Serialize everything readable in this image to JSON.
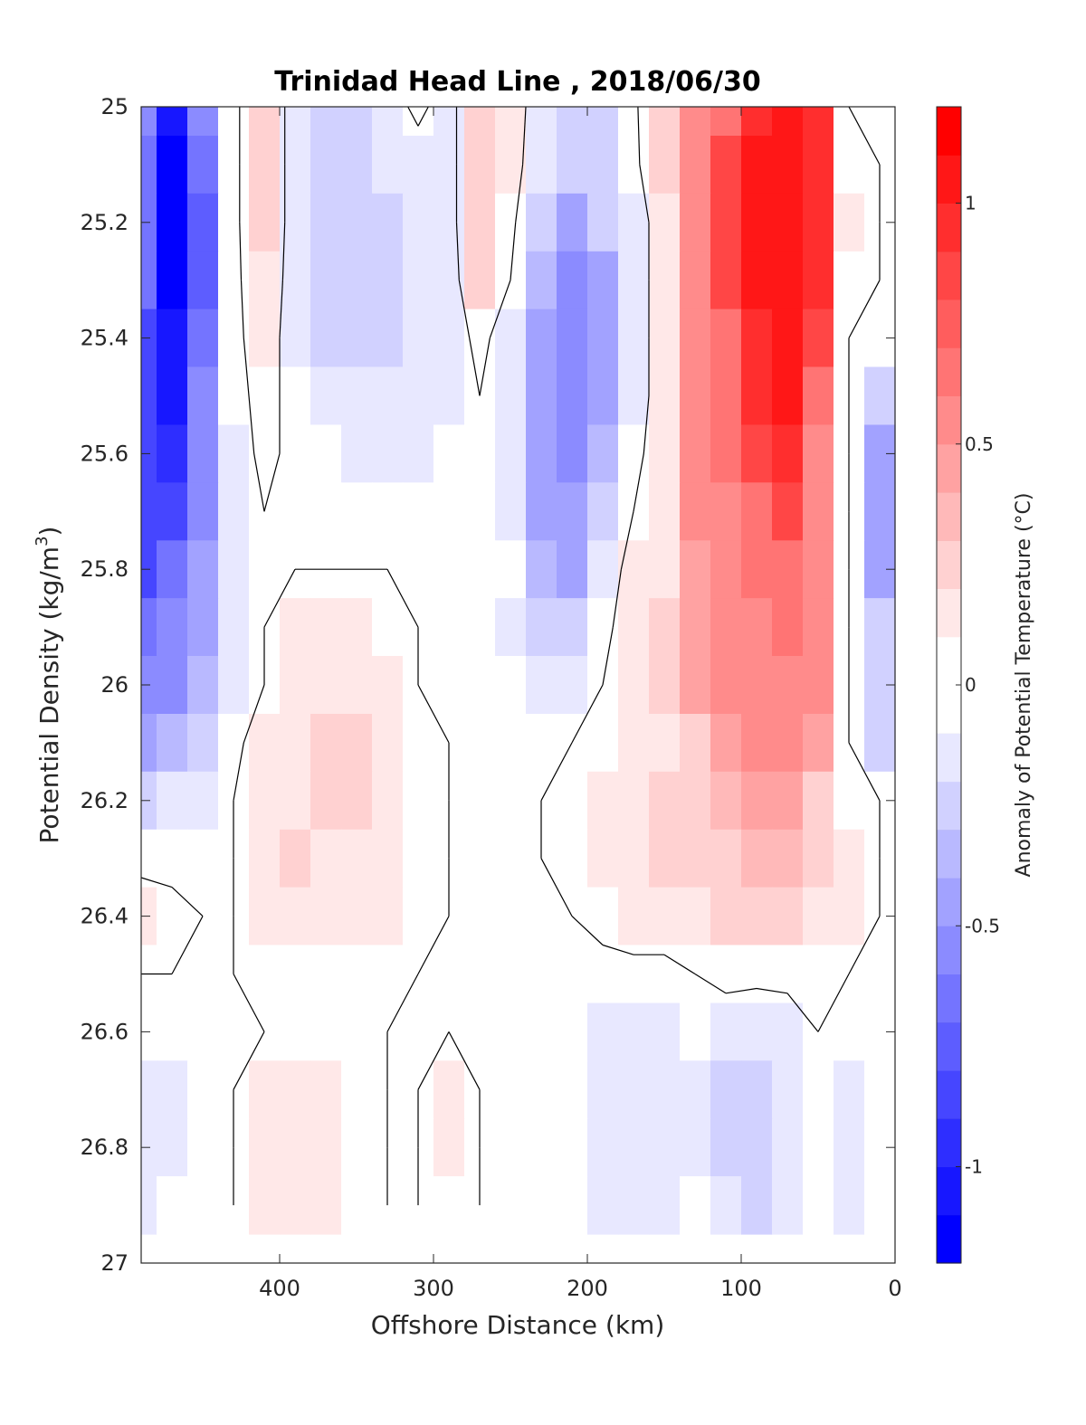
{
  "chart_data": {
    "type": "contour",
    "title": "Trinidad Head Line , 2018/06/30",
    "xlabel": "Offshore Distance (km)",
    "ylabel": "Potential Density (kg/m",
    "ylabel_superscript": "3",
    "ylabel_suffix": ")",
    "xlim": [
      490,
      0
    ],
    "ylim": [
      25,
      27
    ],
    "x_reversed": true,
    "y_reversed": true,
    "xticks": [
      400,
      300,
      200,
      100,
      0
    ],
    "xtick_labels": [
      "400",
      "300",
      "200",
      "100",
      "0"
    ],
    "yticks": [
      25,
      25.2,
      25.4,
      25.6,
      25.8,
      26,
      26.2,
      26.4,
      26.6,
      26.8,
      27
    ],
    "ytick_labels": [
      "25",
      "25.2",
      "25.4",
      "25.6",
      "25.8",
      "26",
      "26.2",
      "26.4",
      "26.6",
      "26.8",
      "27"
    ],
    "colorbar": {
      "label": "Anomaly of Potential Temperature (°C)",
      "range": [
        -1.2,
        1.2
      ],
      "level_step": 0.1,
      "ticks": [
        1,
        0.5,
        0,
        -0.5,
        -1
      ],
      "tick_labels": [
        "1",
        "0.5",
        "0",
        "-0.5",
        "-1"
      ],
      "colormap": "blue-white-red"
    },
    "zero_contour": "black",
    "anomaly_field": {
      "x": [
        490,
        470,
        450,
        430,
        410,
        390,
        370,
        350,
        330,
        310,
        290,
        270,
        250,
        230,
        210,
        190,
        170,
        150,
        130,
        110,
        90,
        70,
        50,
        30,
        10
      ],
      "y": [
        25.0,
        25.1,
        25.2,
        25.3,
        25.4,
        25.5,
        25.6,
        25.7,
        25.8,
        25.9,
        26.0,
        26.1,
        26.2,
        26.3,
        26.4,
        26.5,
        26.6,
        26.7,
        26.8,
        26.9
      ],
      "z": [
        [
          -0.6,
          -1.0,
          -0.6,
          -0.05,
          0.2,
          -0.1,
          -0.2,
          -0.2,
          -0.1,
          0.05,
          -0.1,
          0.3,
          0.1,
          -0.1,
          -0.2,
          -0.2,
          -0.05,
          0.3,
          0.5,
          0.7,
          0.9,
          1.0,
          0.9,
          0.0,
          0.0
        ],
        [
          -0.7,
          -1.1,
          -0.7,
          -0.05,
          0.2,
          -0.1,
          -0.25,
          -0.25,
          -0.15,
          -0.1,
          -0.1,
          0.3,
          0.1,
          -0.15,
          -0.3,
          -0.2,
          -0.05,
          0.2,
          0.5,
          0.8,
          1.0,
          1.0,
          0.9,
          0.05,
          0.0
        ],
        [
          -0.7,
          -1.1,
          -0.75,
          -0.05,
          0.2,
          -0.1,
          -0.3,
          -0.3,
          -0.2,
          -0.15,
          -0.1,
          0.3,
          0.05,
          -0.25,
          -0.4,
          -0.3,
          -0.1,
          0.1,
          0.5,
          0.8,
          1.0,
          1.0,
          0.9,
          0.1,
          0.0
        ],
        [
          -0.7,
          -1.1,
          -0.75,
          -0.05,
          0.15,
          -0.1,
          -0.3,
          -0.3,
          -0.2,
          -0.15,
          -0.1,
          0.2,
          0.0,
          -0.35,
          -0.5,
          -0.4,
          -0.1,
          0.1,
          0.5,
          0.8,
          1.0,
          1.0,
          0.9,
          0.05,
          0.0
        ],
        [
          -0.8,
          -1.0,
          -0.7,
          -0.05,
          0.1,
          -0.1,
          -0.25,
          -0.2,
          -0.2,
          -0.15,
          -0.1,
          0.05,
          -0.1,
          -0.4,
          -0.6,
          -0.4,
          -0.1,
          0.1,
          0.5,
          0.7,
          0.9,
          1.0,
          0.8,
          0.0,
          -0.05
        ],
        [
          -0.8,
          -1.0,
          -0.6,
          -0.05,
          0.05,
          -0.05,
          -0.15,
          -0.15,
          -0.15,
          -0.1,
          -0.1,
          0.0,
          -0.15,
          -0.45,
          -0.55,
          -0.4,
          -0.1,
          0.1,
          0.5,
          0.7,
          0.9,
          1.0,
          0.7,
          0.0,
          -0.3
        ],
        [
          -0.8,
          -0.9,
          -0.6,
          -0.1,
          0.05,
          -0.05,
          -0.05,
          -0.1,
          -0.1,
          -0.1,
          -0.05,
          0.0,
          -0.15,
          -0.45,
          -0.5,
          -0.35,
          -0.05,
          0.1,
          0.5,
          0.7,
          0.8,
          0.9,
          0.6,
          0.0,
          -0.4
        ],
        [
          -0.8,
          -0.8,
          -0.5,
          -0.1,
          0.0,
          0.0,
          0.0,
          0.0,
          0.0,
          -0.05,
          0.0,
          0.0,
          -0.1,
          -0.4,
          -0.45,
          -0.25,
          0.0,
          0.1,
          0.5,
          0.6,
          0.7,
          0.8,
          0.6,
          0.0,
          -0.4
        ],
        [
          -0.8,
          -0.7,
          -0.45,
          -0.1,
          0.0,
          0.0,
          0.0,
          0.0,
          0.0,
          0.0,
          0.0,
          0.0,
          -0.05,
          -0.35,
          -0.45,
          -0.15,
          0.1,
          0.1,
          0.4,
          0.6,
          0.7,
          0.7,
          0.6,
          0.0,
          -0.4
        ],
        [
          -0.7,
          -0.6,
          -0.4,
          -0.1,
          0.0,
          0.1,
          0.1,
          0.1,
          0.05,
          0.0,
          0.0,
          0.0,
          -0.1,
          -0.25,
          -0.3,
          -0.05,
          0.1,
          0.2,
          0.4,
          0.5,
          0.6,
          0.7,
          0.6,
          0.0,
          -0.3
        ],
        [
          -0.55,
          -0.5,
          -0.35,
          -0.1,
          0.0,
          0.1,
          0.15,
          0.15,
          0.1,
          0.0,
          0.0,
          0.0,
          -0.05,
          -0.15,
          -0.1,
          0.0,
          0.1,
          0.2,
          0.4,
          0.5,
          0.55,
          0.6,
          0.5,
          0.0,
          -0.25
        ],
        [
          -0.4,
          -0.35,
          -0.25,
          -0.05,
          0.1,
          0.15,
          0.2,
          0.2,
          0.15,
          0.05,
          0.0,
          0.0,
          0.0,
          -0.05,
          0.0,
          0.05,
          0.15,
          0.15,
          0.3,
          0.4,
          0.5,
          0.5,
          0.4,
          0.0,
          -0.2
        ],
        [
          -0.2,
          -0.15,
          -0.1,
          0.0,
          0.1,
          0.15,
          0.2,
          0.2,
          0.15,
          0.05,
          0.0,
          0.0,
          0.0,
          0.0,
          0.05,
          0.1,
          0.15,
          0.2,
          0.3,
          0.35,
          0.4,
          0.4,
          0.3,
          0.05,
          0.0
        ],
        [
          -0.05,
          -0.05,
          0.0,
          0.0,
          0.1,
          0.2,
          0.15,
          0.15,
          0.15,
          0.05,
          0.0,
          0.0,
          0.0,
          0.0,
          0.05,
          0.1,
          0.15,
          0.2,
          0.25,
          0.3,
          0.35,
          0.35,
          0.3,
          0.1,
          0.0
        ],
        [
          0.1,
          0.05,
          0.0,
          0.0,
          0.1,
          0.15,
          0.1,
          0.1,
          0.1,
          0.05,
          0.0,
          0.0,
          0.0,
          0.0,
          0.0,
          0.05,
          0.1,
          0.1,
          0.15,
          0.2,
          0.25,
          0.2,
          0.15,
          0.1,
          0.0
        ],
        [
          0.0,
          0.0,
          -0.05,
          0.0,
          0.05,
          0.05,
          0.05,
          0.05,
          0.05,
          0.0,
          0.0,
          0.0,
          0.0,
          0.0,
          0.0,
          -0.05,
          -0.05,
          -0.05,
          0.0,
          0.05,
          0.05,
          0.05,
          0.05,
          0.0,
          0.0
        ],
        [
          -0.05,
          -0.05,
          -0.05,
          0.0,
          0.0,
          0.05,
          0.05,
          0.05,
          0.0,
          0.0,
          0.0,
          0.0,
          0.0,
          0.0,
          0.0,
          -0.1,
          -0.15,
          -0.1,
          -0.05,
          -0.1,
          -0.15,
          -0.1,
          0.0,
          -0.05,
          0.0
        ],
        [
          -0.15,
          -0.1,
          -0.05,
          0.0,
          0.1,
          0.1,
          0.1,
          0.05,
          0.0,
          0.0,
          0.1,
          0.0,
          0.0,
          0.0,
          0.0,
          -0.1,
          -0.15,
          -0.15,
          -0.1,
          -0.2,
          -0.25,
          -0.1,
          0.0,
          -0.1,
          0.0
        ],
        [
          -0.15,
          -0.1,
          -0.05,
          0.0,
          0.15,
          0.15,
          0.1,
          0.05,
          0.0,
          0.0,
          0.1,
          0.0,
          0.0,
          0.0,
          0.0,
          -0.1,
          -0.15,
          -0.15,
          -0.1,
          -0.2,
          -0.25,
          -0.1,
          0.0,
          -0.1,
          0.0
        ],
        [
          -0.1,
          -0.05,
          -0.05,
          0.0,
          0.15,
          0.15,
          0.1,
          0.05,
          0.0,
          0.0,
          0.05,
          0.0,
          0.0,
          0.0,
          0.0,
          -0.1,
          -0.1,
          -0.1,
          -0.05,
          -0.15,
          -0.2,
          -0.1,
          0.0,
          -0.1,
          0.0
        ]
      ]
    }
  }
}
